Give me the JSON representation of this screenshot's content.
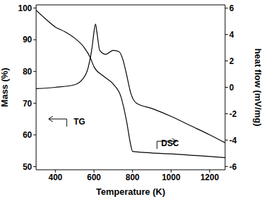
{
  "chart_data": {
    "type": "line",
    "xlabel": "Temperature (K)",
    "ylabel": "Mass (%)",
    "y2label": "heat flow (mV/mg)",
    "xlim": [
      300,
      1280
    ],
    "xticks": [
      400,
      600,
      800,
      1000,
      1200
    ],
    "ylim": [
      49,
      101
    ],
    "yticks": [
      50,
      60,
      70,
      80,
      90,
      100
    ],
    "y2lim": [
      -6.25,
      6.25
    ],
    "y2ticks": [
      -6,
      -4,
      -2,
      0,
      2,
      4,
      6
    ],
    "grid": false,
    "series": [
      {
        "name": "TG",
        "color": "#000000",
        "x": [
          300,
          350,
          400,
          450,
          500,
          550,
          580,
          600,
          650,
          700,
          740,
          770,
          790,
          800,
          850,
          900,
          1000,
          1100,
          1200,
          1280
        ],
        "values": [
          99.3,
          96.5,
          94,
          92.5,
          90.5,
          87.5,
          84.5,
          81.5,
          78.5,
          76,
          72,
          64,
          57,
          54.8,
          54.5,
          54.3,
          54,
          53.6,
          53.2,
          52.8
        ]
      },
      {
        "name": "DSC",
        "color": "#000000",
        "axis": "y2",
        "x": [
          300,
          400,
          500,
          540,
          570,
          590,
          600,
          608,
          615,
          630,
          660,
          700,
          730,
          750,
          770,
          790,
          820,
          900,
          1000,
          1100,
          1200,
          1240,
          1280
        ],
        "values": [
          -0.1,
          0,
          0.2,
          0.6,
          1.5,
          3,
          4.2,
          4.8,
          4.2,
          2.8,
          2.5,
          2.8,
          2.7,
          2.1,
          0.9,
          -0.4,
          -1.2,
          -1.6,
          -2.2,
          -2.9,
          -3.6,
          -3.9,
          -4.2
        ]
      }
    ]
  }
}
